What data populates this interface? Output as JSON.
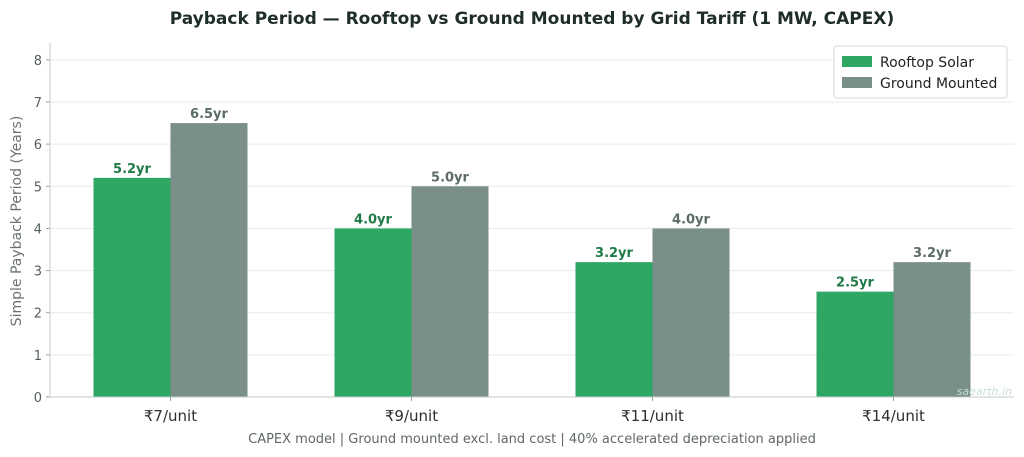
{
  "chart_data": {
    "type": "bar",
    "title": "Payback Period — Rooftop vs Ground Mounted by Grid Tariff (1 MW, CAPEX)",
    "xlabel": "CAPEX model  |  Ground mounted excl. land cost  |  40% accelerated depreciation applied",
    "ylabel": "Simple Payback Period (Years)",
    "categories": [
      "₹7/unit",
      "₹9/unit",
      "₹11/unit",
      "₹14/unit"
    ],
    "ylim": [
      0,
      8.4
    ],
    "yticks": [
      "0",
      "1",
      "2",
      "3",
      "4",
      "5",
      "6",
      "7",
      "8"
    ],
    "grid": true,
    "legend_position": "top-right",
    "series": [
      {
        "name": "Rooftop Solar",
        "color": "#2ea664",
        "label_color": "#1f7a47",
        "values": [
          5.2,
          4.0,
          3.2,
          2.5
        ],
        "labels": [
          "5.2yr",
          "4.0yr",
          "3.2yr",
          "2.5yr"
        ]
      },
      {
        "name": "Ground Mounted",
        "color": "#7a8f87",
        "label_color": "#5b6b65",
        "values": [
          6.5,
          5.0,
          4.0,
          3.2
        ],
        "labels": [
          "6.5yr",
          "5.0yr",
          "4.0yr",
          "3.2yr"
        ]
      }
    ],
    "watermark": "saearth.in"
  }
}
